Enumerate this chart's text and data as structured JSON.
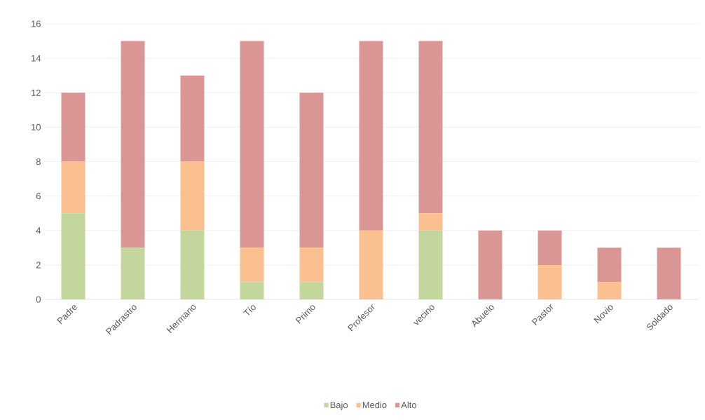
{
  "chart_data": {
    "type": "bar",
    "stacked": true,
    "categories": [
      "Padre",
      "Padrastro",
      "Hermano",
      "Tío",
      "Primo",
      "Profesor",
      "vecino",
      "Abuelo",
      "Pastor",
      "Novio",
      "Soldado"
    ],
    "series": [
      {
        "name": "Bajo",
        "color": "#c3d69b",
        "values": [
          5,
          3,
          4,
          1,
          1,
          0,
          4,
          0,
          0,
          0,
          0
        ]
      },
      {
        "name": "Medio",
        "color": "#fac090",
        "values": [
          3,
          0,
          4,
          2,
          2,
          4,
          1,
          0,
          2,
          1,
          0
        ]
      },
      {
        "name": "Alto",
        "color": "#d99694",
        "values": [
          4,
          12,
          5,
          12,
          9,
          11,
          10,
          4,
          2,
          2,
          3
        ]
      }
    ],
    "ylim": [
      0,
      16
    ],
    "yticks": [
      0,
      2,
      4,
      6,
      8,
      10,
      12,
      14,
      16
    ],
    "grid": "y",
    "legend": "bottom"
  }
}
